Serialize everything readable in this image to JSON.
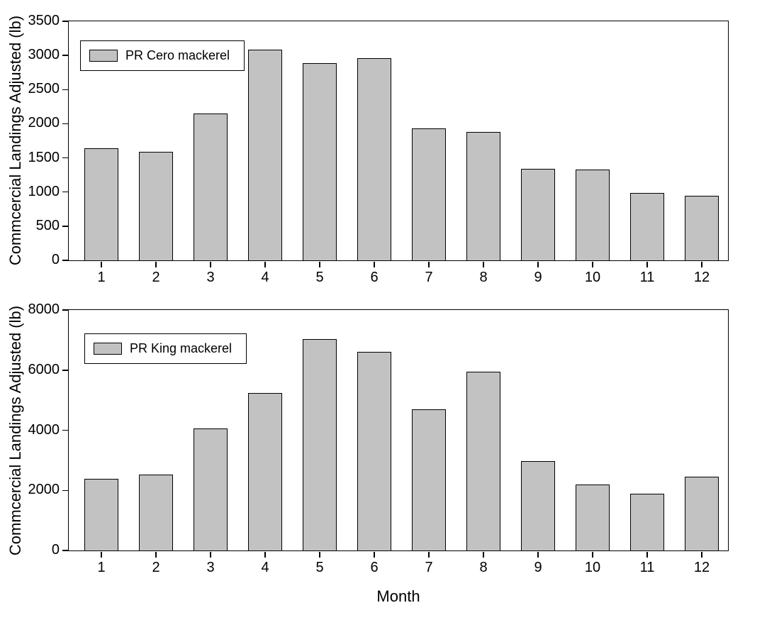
{
  "figure": {
    "background": "#ffffff",
    "text_color": "#000000",
    "bar_fill": "#c2c2c2",
    "bar_stroke": "#000000"
  },
  "chart_data": [
    {
      "type": "bar",
      "panel": "top",
      "legend": "PR Cero mackerel",
      "legend_position": "top-left",
      "ylabel": "Commcercial Landings Adjusted (lb)",
      "xlabel": "",
      "categories": [
        "1",
        "2",
        "3",
        "4",
        "5",
        "6",
        "7",
        "8",
        "9",
        "10",
        "11",
        "12"
      ],
      "values": [
        1640,
        1590,
        2150,
        3080,
        2890,
        2960,
        1930,
        1880,
        1335,
        1325,
        985,
        945
      ],
      "ylim": [
        0,
        3500
      ],
      "yticks": [
        0,
        500,
        1000,
        1500,
        2000,
        2500,
        3000,
        3500
      ],
      "grid": false,
      "bar_fill": "#c2c2c2",
      "bar_stroke": "#000000"
    },
    {
      "type": "bar",
      "panel": "bottom",
      "legend": "PR King mackerel",
      "legend_position": "top-left",
      "ylabel": "Commcercial Landings Adjusted (lb)",
      "xlabel": "Month",
      "categories": [
        "1",
        "2",
        "3",
        "4",
        "5",
        "6",
        "7",
        "8",
        "9",
        "10",
        "11",
        "12"
      ],
      "values": [
        2380,
        2520,
        4050,
        5250,
        7030,
        6600,
        4700,
        5950,
        2980,
        2200,
        1880,
        2450
      ],
      "ylim": [
        0,
        8000
      ],
      "yticks": [
        0,
        2000,
        4000,
        6000,
        8000
      ],
      "grid": false,
      "bar_fill": "#c2c2c2",
      "bar_stroke": "#000000"
    }
  ]
}
